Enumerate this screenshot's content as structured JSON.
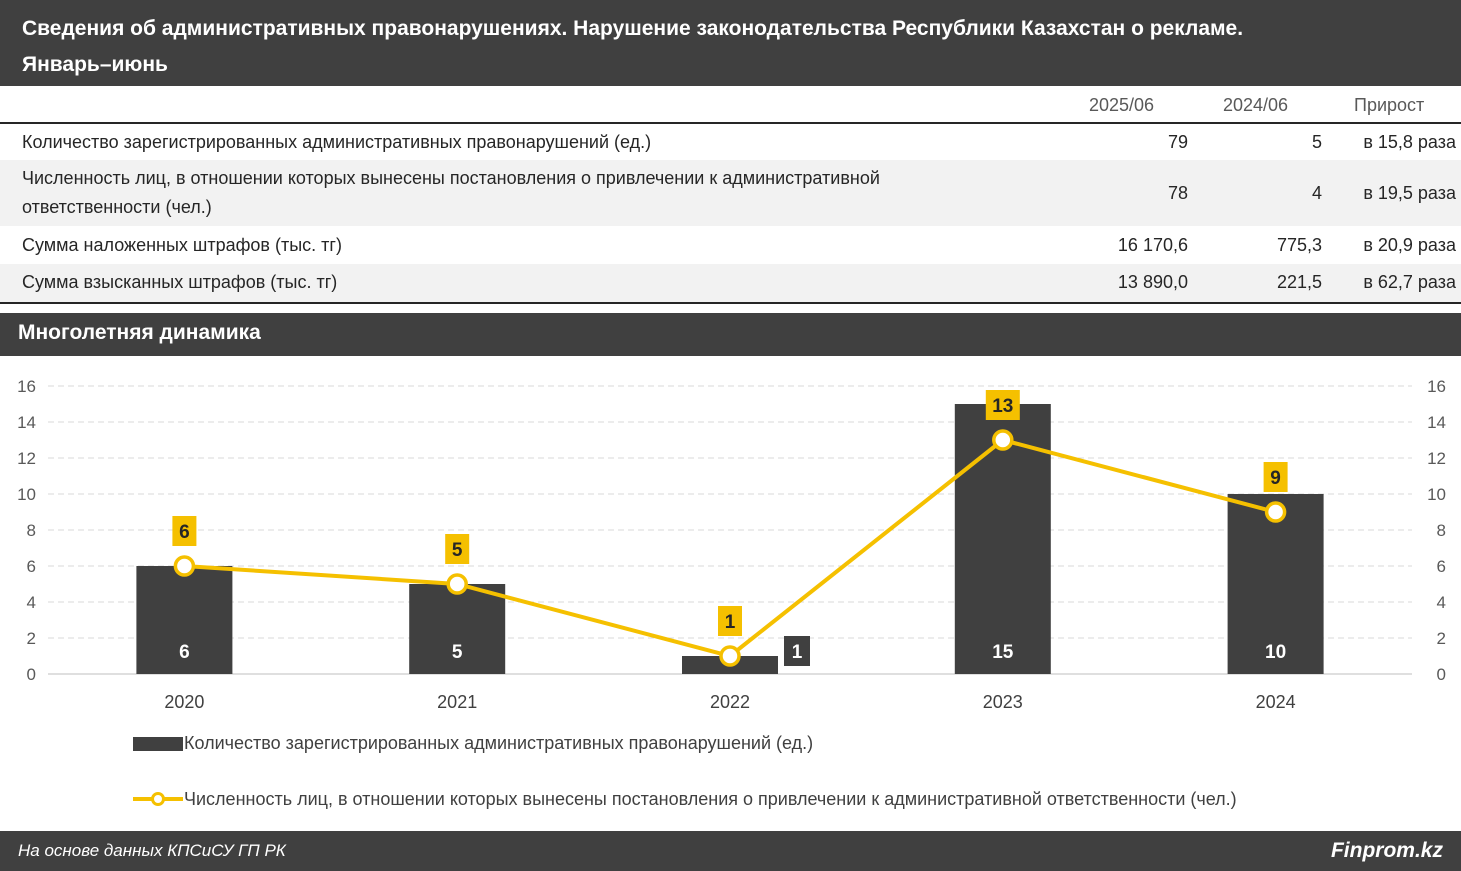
{
  "header": {
    "title_line1": "Сведения об административных правонарушениях. Нарушение законодательства Республики Казахстан о рекламе.",
    "title_line2": "Январь–июнь"
  },
  "table": {
    "columns": [
      "2025/06",
      "2024/06",
      "Прирост"
    ],
    "rows": [
      {
        "label": "Количество зарегистрированных административных правонарушений (ед.)",
        "v2025": "79",
        "v2024": "5",
        "growth": "в 15,8 раза"
      },
      {
        "label_line1": "Численность лиц, в отношении которых вынесены постановления о привлечении к административной",
        "label_line2": "ответственности (чел.)",
        "v2025": "78",
        "v2024": "4",
        "growth": "в 19,5 раза"
      },
      {
        "label": "Сумма наложенных штрафов (тыс. тг)",
        "v2025": "16 170,6",
        "v2024": "775,3",
        "growth": "в 20,9 раза"
      },
      {
        "label": "Сумма взысканных штрафов (тыс. тг)",
        "v2025": "13 890,0",
        "v2024": "221,5",
        "growth": "в 62,7 раза"
      }
    ]
  },
  "section": {
    "title": "Многолетняя динамика"
  },
  "chart_data": {
    "type": "bar",
    "categories": [
      "2020",
      "2021",
      "2022",
      "2023",
      "2024"
    ],
    "series": [
      {
        "name": "Количество зарегистрированных административных правонарушений (ед.)",
        "type": "bar",
        "values": [
          6,
          5,
          1,
          15,
          10
        ],
        "color": "#404040"
      },
      {
        "name": "Численность лиц, в отношении которых вынесены постановления о привлечении к административной ответственности (чел.)",
        "type": "line",
        "values": [
          6,
          5,
          1,
          13,
          9
        ],
        "color": "#f5c000"
      }
    ],
    "ylim": [
      0,
      16
    ],
    "y_ticks": [
      0,
      2,
      4,
      6,
      8,
      10,
      12,
      14,
      16
    ],
    "y2_ticks": [
      0,
      2,
      4,
      6,
      8,
      10,
      12,
      14,
      16
    ],
    "grid": true,
    "legend": "bottom"
  },
  "footer": {
    "source": "На основе данных КПСиСУ ГП РК",
    "brand": "Finprom.kz"
  }
}
